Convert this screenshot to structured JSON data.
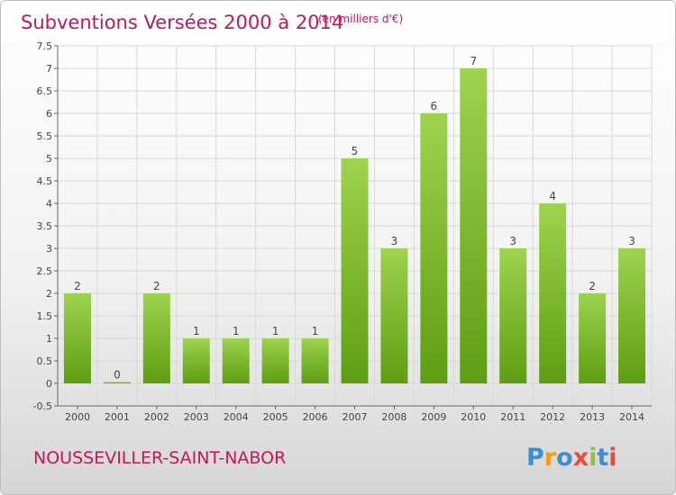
{
  "chart_data": {
    "type": "bar",
    "title": "Subventions Versées 2000 à 2014",
    "subtitle": "(en milliers d'€)",
    "categories": [
      "2000",
      "2001",
      "2002",
      "2003",
      "2004",
      "2005",
      "2006",
      "2007",
      "2008",
      "2009",
      "2010",
      "2011",
      "2012",
      "2013",
      "2014"
    ],
    "values": [
      2,
      0,
      2,
      1,
      1,
      1,
      1,
      5,
      3,
      6,
      7,
      3,
      4,
      2,
      3
    ],
    "value_labels": [
      "2",
      "0",
      "2",
      "1",
      "1",
      "1",
      "1",
      "5",
      "3",
      "6",
      "7",
      "3",
      "4",
      "2",
      "3"
    ],
    "ylim": [
      -0.5,
      7.5
    ],
    "yticks": [
      -0.5,
      0,
      0.5,
      1,
      1.5,
      2,
      2.5,
      3,
      3.5,
      4,
      4.5,
      5,
      5.5,
      6,
      6.5,
      7,
      7.5
    ],
    "ytick_labels": [
      "-0.5",
      "0",
      "0.5",
      "1",
      "1.5",
      "2",
      "2.5",
      "3",
      "3.5",
      "4",
      "4.5",
      "5",
      "5.5",
      "6",
      "6.5",
      "7",
      "7.5"
    ],
    "grid": true,
    "bar_color": "#7cc22a",
    "xlabel": "",
    "ylabel": ""
  },
  "footer": {
    "commune": "NOUSSEVILLER-SAINT-NABOR",
    "logo_text": "Proxiti"
  },
  "colors": {
    "accent": "#c2185b",
    "bar_light": "#9ed34e",
    "bar_dark": "#5e9e12"
  }
}
